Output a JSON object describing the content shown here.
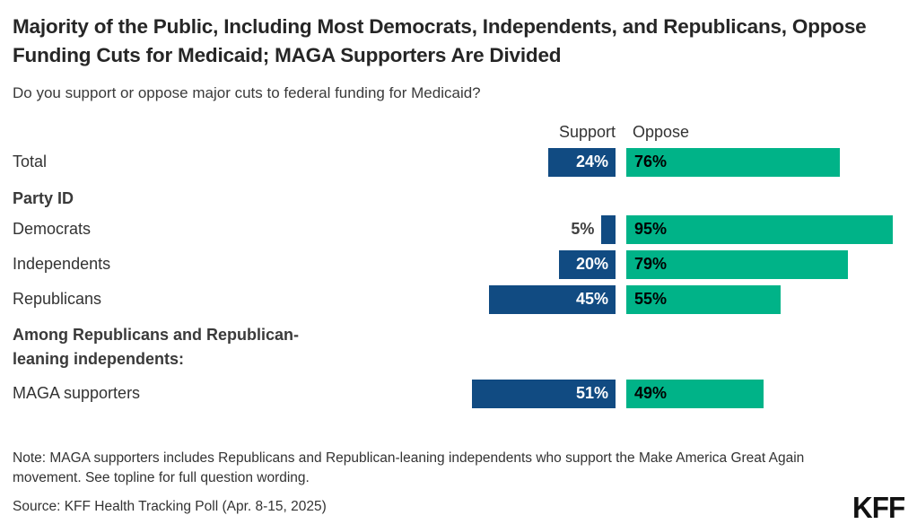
{
  "header": {
    "title": "Majority of the Public, Including Most Democrats, Independents, and Republicans, Oppose Funding Cuts for Medicaid; MAGA Supporters Are Divided",
    "subtitle": "Do you support or oppose major cuts to federal funding for Medicaid?"
  },
  "columns": {
    "support": "Support",
    "oppose": "Oppose"
  },
  "colors": {
    "support_bar": "#114B82",
    "oppose_bar": "#00B388",
    "value_on_support": "#FFFFFF",
    "value_on_oppose": "#000000",
    "outside_value": "#404040"
  },
  "rows": [
    {
      "kind": "bar",
      "label": "Total",
      "support": 24,
      "oppose": 76,
      "support_label": "24%",
      "oppose_label": "76%",
      "support_label_outside": false
    },
    {
      "kind": "section",
      "label": "Party ID",
      "variant": "partyid"
    },
    {
      "kind": "bar",
      "label": "Democrats",
      "support": 5,
      "oppose": 95,
      "support_label": "5%",
      "oppose_label": "95%",
      "support_label_outside": true
    },
    {
      "kind": "bar",
      "label": "Independents",
      "support": 20,
      "oppose": 79,
      "support_label": "20%",
      "oppose_label": "79%",
      "support_label_outside": false
    },
    {
      "kind": "bar",
      "label": "Republicans",
      "support": 45,
      "oppose": 55,
      "support_label": "45%",
      "oppose_label": "55%",
      "support_label_outside": false
    },
    {
      "kind": "section",
      "label": "Among Republicans and Republican-leaning independents:",
      "variant": "among"
    },
    {
      "kind": "bar",
      "label": "MAGA supporters",
      "support": 51,
      "oppose": 49,
      "support_label": "51%",
      "oppose_label": "49%",
      "support_label_outside": false
    }
  ],
  "footer": {
    "note": "Note: MAGA supporters includes Republicans and Republican-leaning independents who support the Make America Great Again movement. See topline for full question wording.",
    "source": "Source: KFF Health Tracking Poll (Apr. 8-15, 2025)",
    "logo": "KFF"
  },
  "chart_data": {
    "type": "bar",
    "orientation": "horizontal",
    "title": "Majority of the Public, Including Most Democrats, Independents, and Republicans, Oppose Funding Cuts for Medicaid; MAGA Supporters Are Divided",
    "subtitle": "Do you support or oppose major cuts to federal funding for Medicaid?",
    "categories": [
      "Total",
      "Democrats",
      "Independents",
      "Republicans",
      "MAGA supporters"
    ],
    "series": [
      {
        "name": "Support",
        "values": [
          24,
          5,
          20,
          45,
          51
        ],
        "color": "#114B82"
      },
      {
        "name": "Oppose",
        "values": [
          76,
          95,
          79,
          55,
          49
        ],
        "color": "#00B388"
      }
    ],
    "section_headers": [
      {
        "label": "Party ID",
        "before_category": "Democrats"
      },
      {
        "label": "Among Republicans and Republican-leaning independents:",
        "before_category": "MAGA supporters"
      }
    ],
    "xlim": [
      0,
      100
    ],
    "value_suffix": "%",
    "grid": false,
    "legend_position": "top"
  }
}
